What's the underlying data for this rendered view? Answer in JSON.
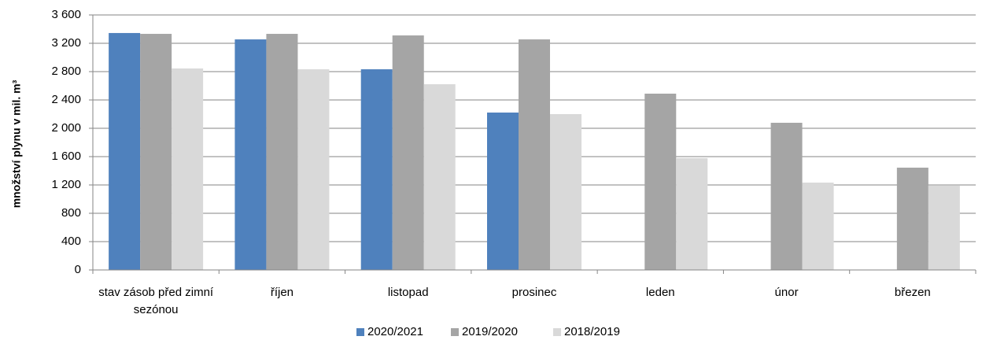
{
  "chart_data": {
    "type": "bar",
    "y_label": "množství plynu v mil. m³",
    "categories": [
      "stav zásob před zimní sezónou",
      "říjen",
      "listopad",
      "prosinec",
      "leden",
      "únor",
      "březen"
    ],
    "series": [
      {
        "name": "2020/2021",
        "color": "#4f81bd",
        "values": [
          3345,
          3255,
          2833,
          2222,
          null,
          null,
          null
        ]
      },
      {
        "name": "2019/2020",
        "color": "#a5a5a5",
        "values": [
          3333,
          3333,
          3311,
          3255,
          2489,
          2078,
          1444
        ]
      },
      {
        "name": "2018/2019",
        "color": "#d9d9d9",
        "values": [
          2844,
          2833,
          2622,
          2200,
          1578,
          1233,
          1189
        ]
      }
    ],
    "ylim": [
      0,
      3600
    ],
    "yticks": [
      0,
      400,
      800,
      {
        "value": 1200,
        "label": "1 200"
      },
      {
        "value": 1600,
        "label": "1 600"
      },
      {
        "value": 2000,
        "label": "2 000"
      },
      {
        "value": 2400,
        "label": "2 400"
      },
      {
        "value": 2800,
        "label": "2 800"
      },
      {
        "value": 3200,
        "label": "3 200"
      },
      {
        "value": 3600,
        "label": "3 600"
      }
    ],
    "grid": true,
    "legend": "bottom"
  }
}
